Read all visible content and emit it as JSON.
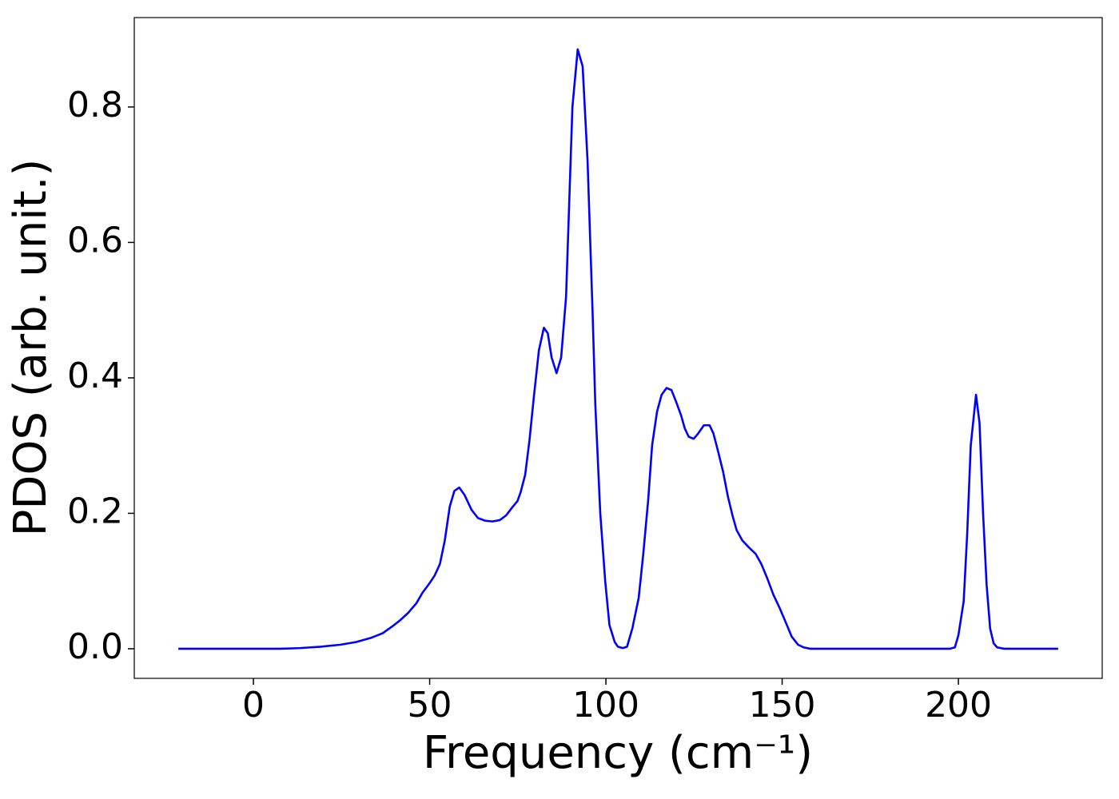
{
  "chart_data": {
    "type": "line",
    "x_label": "Frequency (cm⁻¹)",
    "y_label": "PDOS (arb. unit.)",
    "x": [
      -21.3,
      7.7,
      13.3,
      19,
      24.7,
      29.2,
      33.3,
      36.7,
      39.4,
      41.6,
      43.9,
      46.2,
      48,
      50,
      51.4,
      52.9,
      54.3,
      55.7,
      57,
      58.4,
      59.9,
      61.9,
      63.7,
      65.8,
      67.8,
      69.9,
      71.7,
      73.3,
      74.9,
      75.8,
      77.1,
      78.3,
      79.6,
      81,
      82.4,
      83.5,
      84.6,
      86,
      87.3,
      88.7,
      90.5,
      92,
      93.4,
      94.8,
      96.2,
      97,
      98.4,
      99.8,
      101,
      102.5,
      103.4,
      104.8,
      106,
      107.5,
      109.3,
      110.6,
      112,
      113.1,
      114.5,
      115.8,
      117.2,
      118.6,
      119.9,
      121.3,
      122.4,
      123.5,
      124.9,
      126.2,
      127.8,
      129.4,
      130.5,
      131.9,
      133.3,
      134.6,
      136,
      137.1,
      138.7,
      140.5,
      142.5,
      144.1,
      145.7,
      147.5,
      149.3,
      151.1,
      152.7,
      154.5,
      156.1,
      158,
      197.5,
      199,
      200,
      201.5,
      202.5,
      203.5,
      205,
      206,
      207,
      208,
      209,
      210,
      211,
      213,
      228.3
    ],
    "series": [
      {
        "name": "PDOS",
        "color": "#0000ff",
        "values": [
          0,
          0,
          0.001,
          0.003,
          0.006,
          0.01,
          0.016,
          0.023,
          0.033,
          0.042,
          0.053,
          0.067,
          0.083,
          0.097,
          0.108,
          0.125,
          0.16,
          0.21,
          0.233,
          0.238,
          0.227,
          0.205,
          0.193,
          0.189,
          0.188,
          0.19,
          0.197,
          0.208,
          0.218,
          0.231,
          0.257,
          0.307,
          0.374,
          0.441,
          0.474,
          0.466,
          0.43,
          0.407,
          0.43,
          0.52,
          0.8,
          0.885,
          0.86,
          0.72,
          0.5,
          0.36,
          0.2,
          0.1,
          0.035,
          0.01,
          0.003,
          0.001,
          0.003,
          0.03,
          0.075,
          0.14,
          0.22,
          0.3,
          0.35,
          0.375,
          0.385,
          0.382,
          0.365,
          0.345,
          0.325,
          0.313,
          0.31,
          0.318,
          0.33,
          0.33,
          0.318,
          0.29,
          0.26,
          0.225,
          0.195,
          0.175,
          0.16,
          0.15,
          0.14,
          0.125,
          0.105,
          0.08,
          0.06,
          0.038,
          0.018,
          0.006,
          0.002,
          0,
          0,
          0.002,
          0.02,
          0.07,
          0.17,
          0.3,
          0.375,
          0.333,
          0.2,
          0.095,
          0.03,
          0.008,
          0.002,
          0,
          0
        ]
      }
    ],
    "xlim": [
      -33.8,
      240.8
    ],
    "xticks": [
      0,
      50,
      100,
      150,
      200
    ],
    "ylim": [
      -0.0437,
      0.932
    ],
    "yticks": [
      {
        "value": 0,
        "label": "0.0"
      },
      {
        "value": 0.2,
        "label": "0.2"
      },
      {
        "value": 0.4,
        "label": "0.4"
      },
      {
        "value": 0.6,
        "label": "0.6"
      },
      {
        "value": 0.8,
        "label": "0.8"
      }
    ]
  }
}
